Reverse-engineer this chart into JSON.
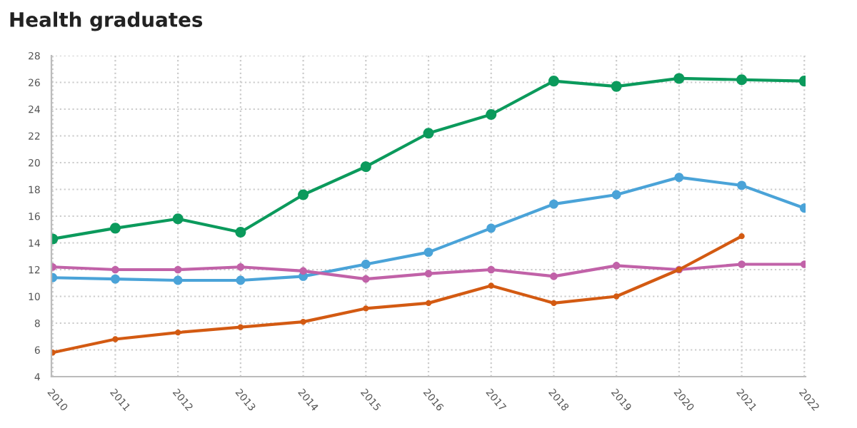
{
  "chart_data": {
    "type": "line",
    "title": "Health graduates",
    "categories": [
      "2010",
      "2011",
      "2012",
      "2013",
      "2014",
      "2015",
      "2016",
      "2017",
      "2018",
      "2019",
      "2020",
      "2021",
      "2022"
    ],
    "series": [
      {
        "color": "#0b9a5c",
        "values": [
          14.3,
          15.1,
          15.8,
          14.8,
          17.6,
          19.7,
          22.2,
          23.6,
          26.1,
          25.7,
          26.3,
          26.2,
          26.1
        ]
      },
      {
        "color": "#4aa3d8",
        "values": [
          11.4,
          11.3,
          11.2,
          11.2,
          11.5,
          12.4,
          13.3,
          15.1,
          16.9,
          17.6,
          18.9,
          18.3,
          16.6
        ]
      },
      {
        "color": "#c162a8",
        "values": [
          12.2,
          12.0,
          12.0,
          12.2,
          11.9,
          11.3,
          11.7,
          12.0,
          11.5,
          12.3,
          12.0,
          12.4,
          12.4
        ]
      },
      {
        "color": "#d35a12",
        "values": [
          5.8,
          6.8,
          7.3,
          7.7,
          8.1,
          9.1,
          9.5,
          10.8,
          9.5,
          10.0,
          12.0,
          14.5,
          null
        ]
      }
    ],
    "ylim": [
      4,
      28
    ],
    "yticks": [
      4,
      6,
      8,
      10,
      12,
      14,
      16,
      18,
      20,
      22,
      24,
      26,
      28
    ],
    "grid": true,
    "marker": "circle",
    "line_style": "solid"
  }
}
